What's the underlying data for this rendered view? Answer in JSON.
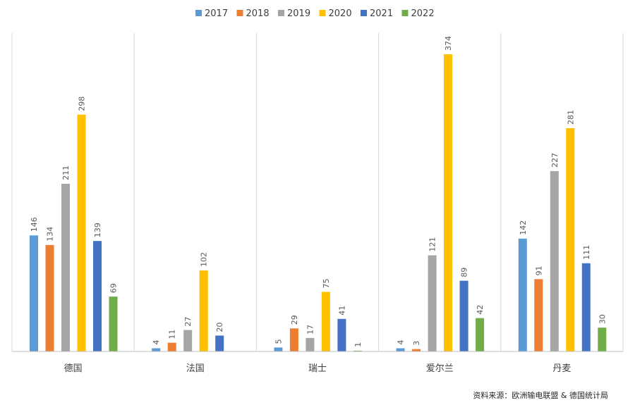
{
  "chart_data": {
    "type": "bar",
    "categories": [
      "德国",
      "法国",
      "瑞士",
      "爱尔兰",
      "丹麦"
    ],
    "series": [
      {
        "name": "2017",
        "color": "#5B9BD5",
        "values": [
          146,
          4,
          5,
          4,
          142
        ]
      },
      {
        "name": "2018",
        "color": "#ED7D31",
        "values": [
          134,
          11,
          29,
          3,
          91
        ]
      },
      {
        "name": "2019",
        "color": "#A5A5A5",
        "values": [
          211,
          27,
          17,
          121,
          227
        ]
      },
      {
        "name": "2020",
        "color": "#FFC000",
        "values": [
          298,
          102,
          75,
          374,
          281
        ]
      },
      {
        "name": "2021",
        "color": "#4472C4",
        "values": [
          139,
          20,
          41,
          89,
          111
        ]
      },
      {
        "name": "2022",
        "color": "#70AD47",
        "values": [
          69,
          null,
          1,
          42,
          30
        ]
      }
    ],
    "title": "",
    "xlabel": "",
    "ylabel": "",
    "ylim": [
      0,
      374
    ],
    "grid": false,
    "legend_position": "top",
    "source": "资料来源：欧洲输电联盟 & 德国统计局"
  }
}
